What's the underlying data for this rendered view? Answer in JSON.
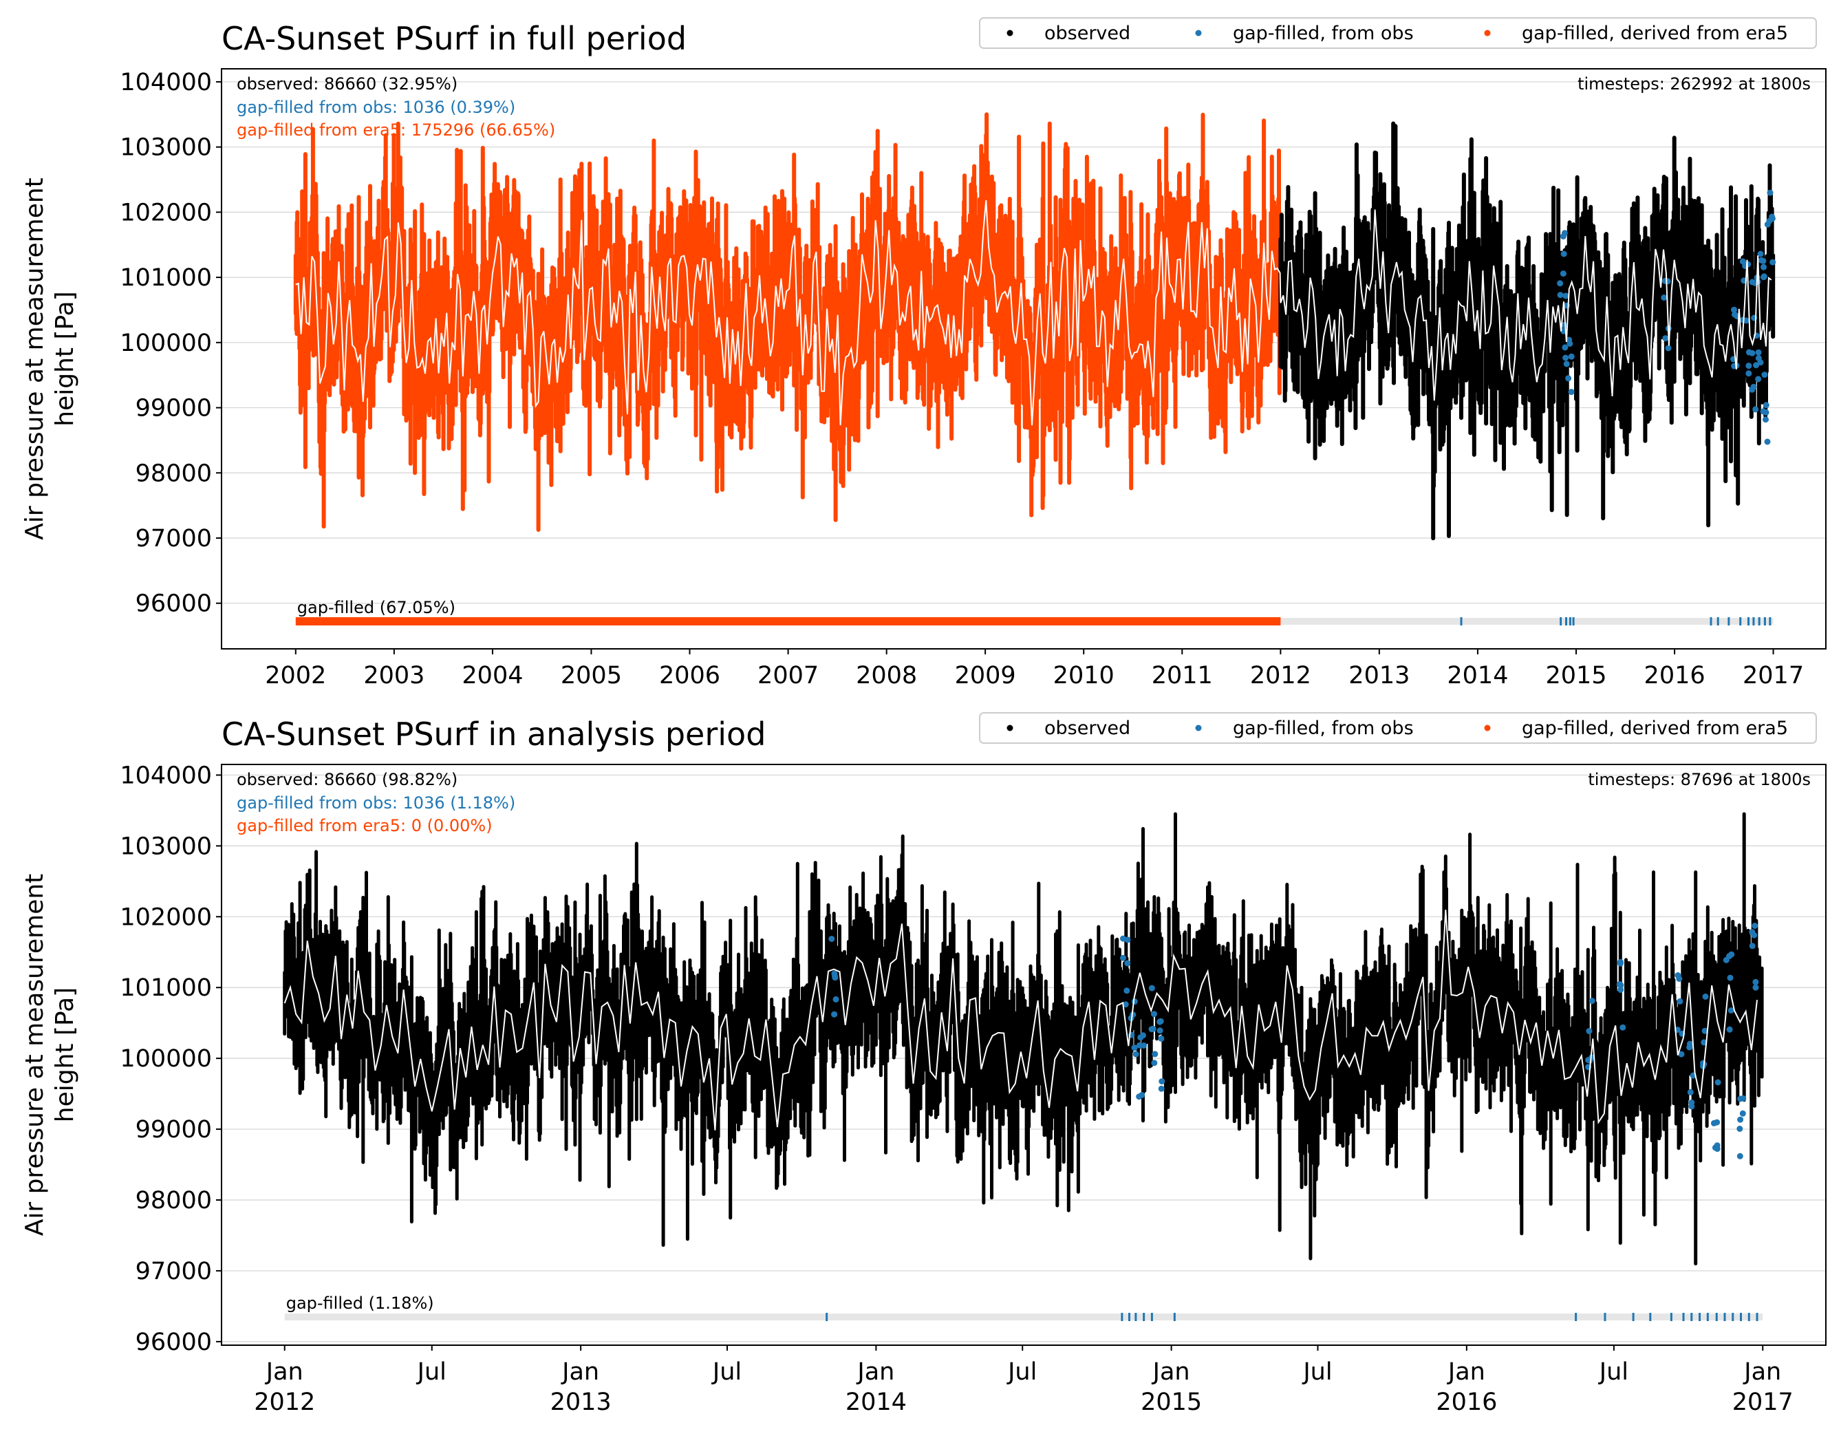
{
  "colors": {
    "observed": "#000000",
    "gap_obs": "#1f77b4",
    "gap_era5": "#ff4500",
    "mean_line": "#ffffff",
    "grid": "#d3d3d3",
    "gap_bar_bg": "#e6e6e6"
  },
  "chart_data": [
    {
      "type": "scatter",
      "title": "CA-Sunset PSurf in full period",
      "ylabel": "Air pressure at measurement\nheight [Pa]",
      "xlabel": "",
      "xlim": [
        "2001-04-01",
        "2017-07-15"
      ],
      "ylim": [
        95300,
        104200
      ],
      "yticks": [
        96000,
        97000,
        98000,
        99000,
        100000,
        101000,
        102000,
        103000,
        104000
      ],
      "xticks": [
        {
          "date": "2002-01-01",
          "label": "2002"
        },
        {
          "date": "2003-01-01",
          "label": "2003"
        },
        {
          "date": "2004-01-01",
          "label": "2004"
        },
        {
          "date": "2005-01-01",
          "label": "2005"
        },
        {
          "date": "2006-01-01",
          "label": "2006"
        },
        {
          "date": "2007-01-01",
          "label": "2007"
        },
        {
          "date": "2008-01-01",
          "label": "2008"
        },
        {
          "date": "2009-01-01",
          "label": "2009"
        },
        {
          "date": "2010-01-01",
          "label": "2010"
        },
        {
          "date": "2011-01-01",
          "label": "2011"
        },
        {
          "date": "2012-01-01",
          "label": "2012"
        },
        {
          "date": "2013-01-01",
          "label": "2013"
        },
        {
          "date": "2014-01-01",
          "label": "2014"
        },
        {
          "date": "2015-01-01",
          "label": "2015"
        },
        {
          "date": "2016-01-01",
          "label": "2016"
        },
        {
          "date": "2017-01-01",
          "label": "2017"
        }
      ],
      "grid": "horizontal",
      "legend": {
        "placement": "top-right",
        "entries": [
          "observed",
          "gap-filled, from obs",
          "gap-filled, derived from era5"
        ]
      },
      "stats": {
        "observed": "observed: 86660 (32.95%)",
        "gap_obs": "gap-filled from obs: 1036 (0.39%)",
        "gap_era5": "gap-filled from era5: 175296 (66.65%)",
        "timesteps": "timesteps: 262992 at 1800s",
        "gap_label": "gap-filled (67.05%)"
      },
      "series": [
        {
          "name": "gap-filled, derived from era5",
          "range": [
            "2002-01-01",
            "2012-01-01"
          ],
          "center": 100500,
          "amp": 1900
        },
        {
          "name": "observed",
          "range": [
            "2012-01-01",
            "2017-01-01"
          ],
          "center": 100400,
          "amp": 1600
        },
        {
          "name": "gap-filled, from obs",
          "points_approx": [
            [
              "2014-11-10",
              101100
            ],
            [
              "2014-11-20",
              100300
            ],
            [
              "2014-12-05",
              99800
            ],
            [
              "2015-12-01",
              100500
            ],
            [
              "2016-08-10",
              100200
            ],
            [
              "2016-09-20",
              100900
            ],
            [
              "2016-10-10",
              99700
            ],
            [
              "2016-10-25",
              100700
            ],
            [
              "2016-11-05",
              99400
            ],
            [
              "2016-11-20",
              101200
            ],
            [
              "2016-12-05",
              99000
            ],
            [
              "2016-12-20",
              101800
            ]
          ]
        }
      ],
      "gap_bar": {
        "era5": [
          [
            "2002-01-01",
            "2012-01-01"
          ]
        ],
        "obs": [
          "2013-11-01",
          "2014-11-05",
          "2014-11-25",
          "2014-12-10",
          "2014-12-22",
          "2016-05-15",
          "2016-06-10",
          "2016-07-20",
          "2016-09-01",
          "2016-10-01",
          "2016-10-20",
          "2016-11-10",
          "2016-12-01",
          "2016-12-20"
        ]
      }
    },
    {
      "type": "scatter",
      "title": "CA-Sunset PSurf in analysis period",
      "ylabel": "Air pressure at measurement\nheight [Pa]",
      "xlabel": "",
      "xlim": [
        "2011-10-15",
        "2017-03-20"
      ],
      "ylim": [
        95950,
        104150
      ],
      "yticks": [
        96000,
        97000,
        98000,
        99000,
        100000,
        101000,
        102000,
        103000,
        104000
      ],
      "xticks": [
        {
          "date": "2012-01-01",
          "label": "Jan\n2012"
        },
        {
          "date": "2012-07-01",
          "label": "Jul"
        },
        {
          "date": "2013-01-01",
          "label": "Jan\n2013"
        },
        {
          "date": "2013-07-01",
          "label": "Jul"
        },
        {
          "date": "2014-01-01",
          "label": "Jan\n2014"
        },
        {
          "date": "2014-07-01",
          "label": "Jul"
        },
        {
          "date": "2015-01-01",
          "label": "Jan\n2015"
        },
        {
          "date": "2015-07-01",
          "label": "Jul"
        },
        {
          "date": "2016-01-01",
          "label": "Jan\n2016"
        },
        {
          "date": "2016-07-01",
          "label": "Jul"
        },
        {
          "date": "2017-01-01",
          "label": "Jan\n2017"
        }
      ],
      "grid": "horizontal",
      "legend": {
        "placement": "top-right",
        "entries": [
          "observed",
          "gap-filled, from obs",
          "gap-filled, derived from era5"
        ]
      },
      "stats": {
        "observed": "observed: 86660 (98.82%)",
        "gap_obs": "gap-filled from obs: 1036 (1.18%)",
        "gap_era5": "gap-filled from era5: 0 (0.00%)",
        "timesteps": "timesteps: 87696 at 1800s",
        "gap_label": "gap-filled (1.18%)"
      },
      "series": [
        {
          "name": "observed",
          "range": [
            "2012-01-01",
            "2017-01-01"
          ],
          "center": 100400,
          "amp": 1600
        },
        {
          "name": "gap-filled, from obs",
          "points_approx": [
            [
              "2013-11-10",
              101200
            ],
            [
              "2014-11-05",
              101100
            ],
            [
              "2014-11-15",
              100400
            ],
            [
              "2014-11-25",
              99800
            ],
            [
              "2014-12-10",
              100500
            ],
            [
              "2014-12-20",
              100000
            ],
            [
              "2016-06-01",
              100300
            ],
            [
              "2016-07-10",
              100800
            ],
            [
              "2016-09-20",
              100600
            ],
            [
              "2016-10-05",
              99900
            ],
            [
              "2016-10-20",
              100300
            ],
            [
              "2016-11-05",
              99300
            ],
            [
              "2016-11-20",
              100900
            ],
            [
              "2016-12-05",
              99000
            ],
            [
              "2016-12-20",
              101500
            ]
          ]
        }
      ],
      "gap_bar": {
        "era5": [],
        "obs": [
          "2013-11-01",
          "2014-11-01",
          "2014-11-10",
          "2014-11-18",
          "2014-11-28",
          "2014-12-08",
          "2015-01-05",
          "2016-05-15",
          "2016-06-20",
          "2016-07-25",
          "2016-08-15",
          "2016-09-10",
          "2016-09-25",
          "2016-10-05",
          "2016-10-15",
          "2016-10-25",
          "2016-11-05",
          "2016-11-15",
          "2016-11-25",
          "2016-12-05",
          "2016-12-15",
          "2016-12-25"
        ]
      }
    }
  ]
}
